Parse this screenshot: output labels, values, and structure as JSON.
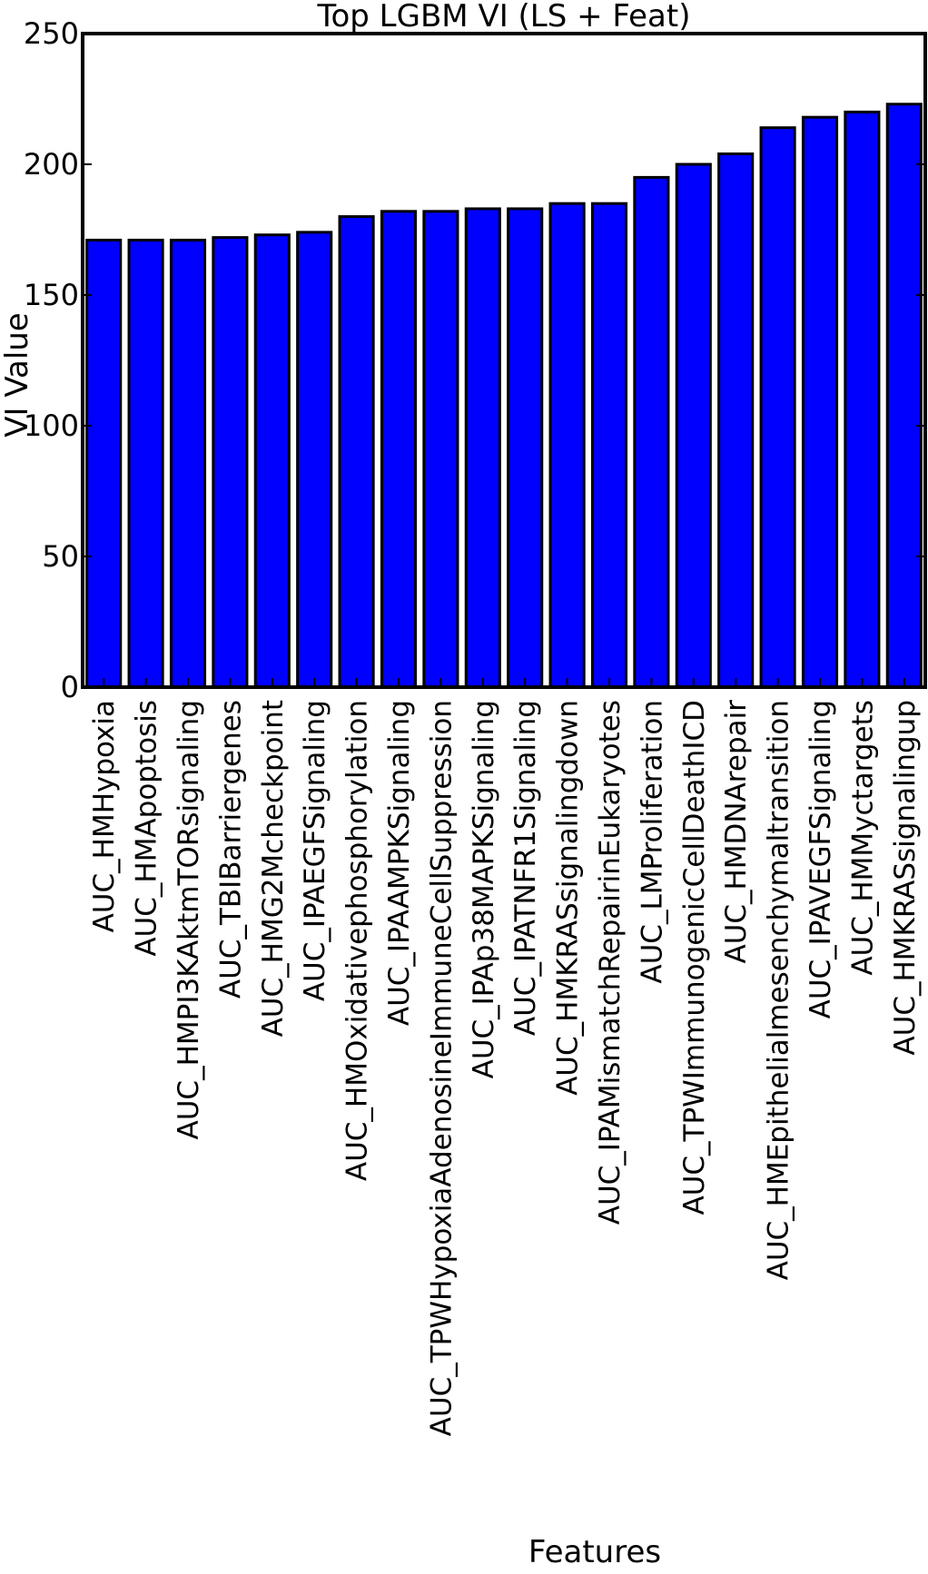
{
  "chart_data": {
    "type": "bar",
    "title": "Top LGBM VI (LS + Feat)",
    "xlabel": "Features",
    "ylabel": "VI Value",
    "ylim": [
      0,
      250
    ],
    "yticks": [
      0,
      50,
      100,
      150,
      200,
      250
    ],
    "grid": false,
    "bar_color": "#0000ff",
    "categories": [
      "AUC_HMHypoxia",
      "AUC_HMApoptosis",
      "AUC_HMPI3KAktmTORsignaling",
      "AUC_TBIBarriergenes",
      "AUC_HMG2Mcheckpoint",
      "AUC_IPAEGFSignaling",
      "AUC_HMOxidativephosphorylation",
      "AUC_IPAAMPKSignaling",
      "AUC_TPWHypoxiaAdenosineImmuneCellSuppression",
      "AUC_IPAp38MAPKSignaling",
      "AUC_IPATNFR1Signaling",
      "AUC_HMKRASsignalingdown",
      "AUC_IPAMismatchRepairinEukaryotes",
      "AUC_LMProliferation",
      "AUC_TPWImmunogenicCellDeathICD",
      "AUC_HMDNArepair",
      "AUC_HMEpithelialmesenchymaltransition",
      "AUC_IPAVEGFSignaling",
      "AUC_HMMyctargets",
      "AUC_HMKRASsignalingup"
    ],
    "values": [
      171,
      171,
      171,
      172,
      173,
      174,
      180,
      182,
      182,
      183,
      183,
      185,
      185,
      195,
      200,
      204,
      214,
      218,
      220,
      223
    ]
  }
}
